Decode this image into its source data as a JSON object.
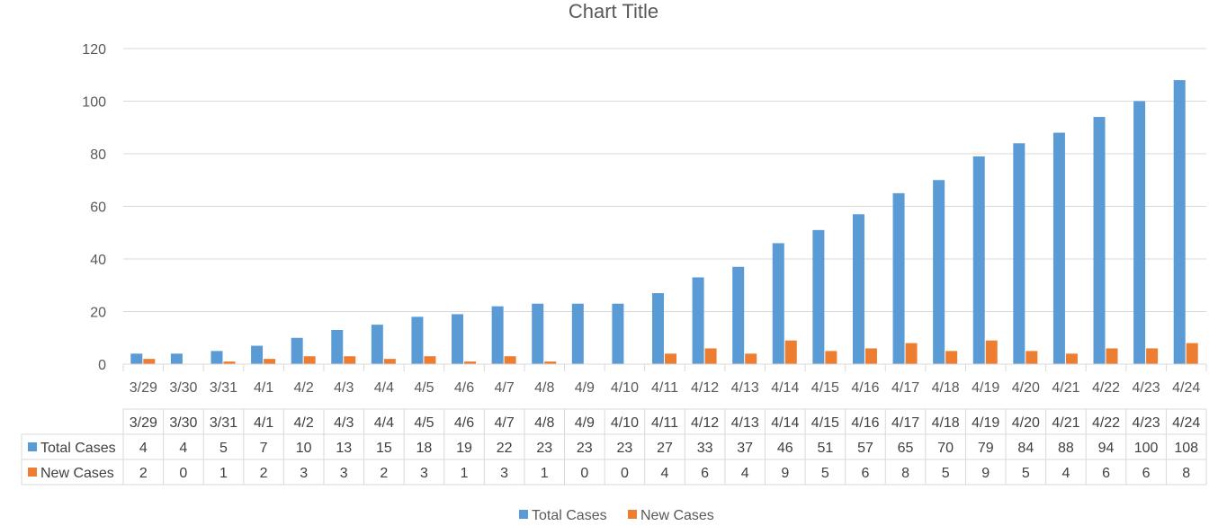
{
  "chart_data": {
    "type": "bar",
    "title": "Chart Title",
    "categories": [
      "3/29",
      "3/30",
      "3/31",
      "4/1",
      "4/2",
      "4/3",
      "4/4",
      "4/5",
      "4/6",
      "4/7",
      "4/8",
      "4/9",
      "4/10",
      "4/11",
      "4/12",
      "4/13",
      "4/14",
      "4/15",
      "4/16",
      "4/17",
      "4/18",
      "4/19",
      "4/20",
      "4/21",
      "4/22",
      "4/23",
      "4/24"
    ],
    "series": [
      {
        "name": "Total Cases",
        "color": "#5B9BD5",
        "values": [
          4,
          4,
          5,
          7,
          10,
          13,
          15,
          18,
          19,
          22,
          23,
          23,
          23,
          27,
          33,
          37,
          46,
          51,
          57,
          65,
          70,
          79,
          84,
          88,
          94,
          100,
          108
        ]
      },
      {
        "name": "New Cases",
        "color": "#ED7D31",
        "values": [
          2,
          0,
          1,
          2,
          3,
          3,
          2,
          3,
          1,
          3,
          1,
          0,
          0,
          4,
          6,
          4,
          9,
          5,
          6,
          8,
          5,
          9,
          5,
          4,
          6,
          6,
          8
        ]
      }
    ],
    "ylim": [
      0,
      120
    ],
    "yticks": [
      0,
      20,
      40,
      60,
      80,
      100,
      120
    ],
    "grid": true,
    "data_table": true,
    "legend": "bottom"
  }
}
